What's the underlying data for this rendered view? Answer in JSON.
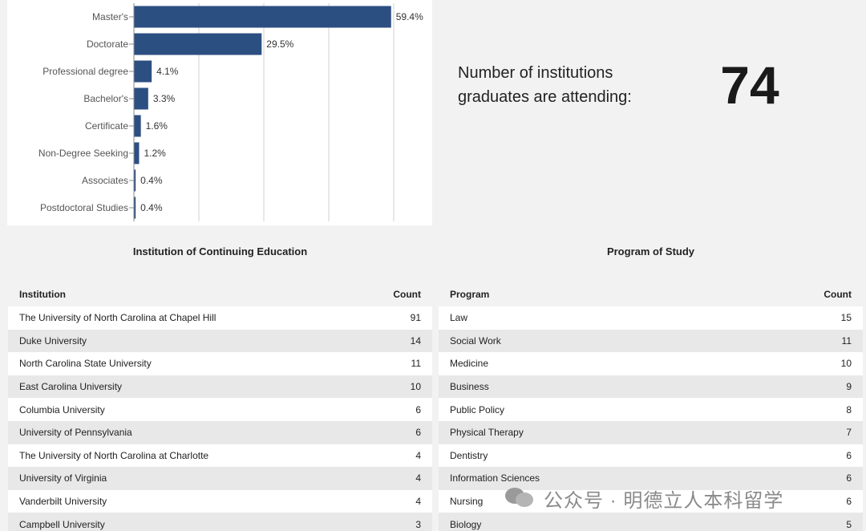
{
  "chart_data": {
    "type": "bar",
    "orientation": "horizontal",
    "categories": [
      "Master's",
      "Doctorate",
      "Professional degree",
      "Bachelor's",
      "Certificate",
      "Non-Degree Seeking",
      "Associates",
      "Postdoctoral Studies"
    ],
    "values": [
      59.4,
      29.5,
      4.1,
      3.3,
      1.6,
      1.2,
      0.4,
      0.4
    ],
    "value_labels": [
      "59.4%",
      "29.5%",
      "4.1%",
      "3.3%",
      "1.6%",
      "1.2%",
      "0.4%",
      "0.4%"
    ],
    "color": "#2c4f82",
    "xlim": [
      0,
      60
    ],
    "xticks": [
      0,
      15,
      30,
      45,
      60
    ],
    "grid": true
  },
  "kpi": {
    "label": "Number of institutions graduates are attending:",
    "value": 74
  },
  "tables": [
    {
      "title": "Institution of Continuing Education",
      "columns": [
        "Institution",
        "Count"
      ],
      "rows": [
        [
          "The University of North Carolina at Chapel Hill",
          91
        ],
        [
          "Duke University",
          14
        ],
        [
          "North Carolina State University",
          11
        ],
        [
          "East Carolina University",
          10
        ],
        [
          "Columbia University",
          6
        ],
        [
          "University of Pennsylvania",
          6
        ],
        [
          "The University of North Carolina at Charlotte",
          4
        ],
        [
          "University of Virginia",
          4
        ],
        [
          "Vanderbilt University",
          4
        ],
        [
          "Campbell University",
          3
        ]
      ]
    },
    {
      "title": "Program of Study",
      "columns": [
        "Program",
        "Count"
      ],
      "rows": [
        [
          "Law",
          15
        ],
        [
          "Social Work",
          11
        ],
        [
          "Medicine",
          10
        ],
        [
          "Business",
          9
        ],
        [
          "Public Policy",
          8
        ],
        [
          "Physical Therapy",
          7
        ],
        [
          "Dentistry",
          6
        ],
        [
          "Information Sciences",
          6
        ],
        [
          "Nursing",
          6
        ],
        [
          "Biology",
          5
        ]
      ]
    }
  ],
  "watermark": "公众号 · 明德立人本科留学"
}
